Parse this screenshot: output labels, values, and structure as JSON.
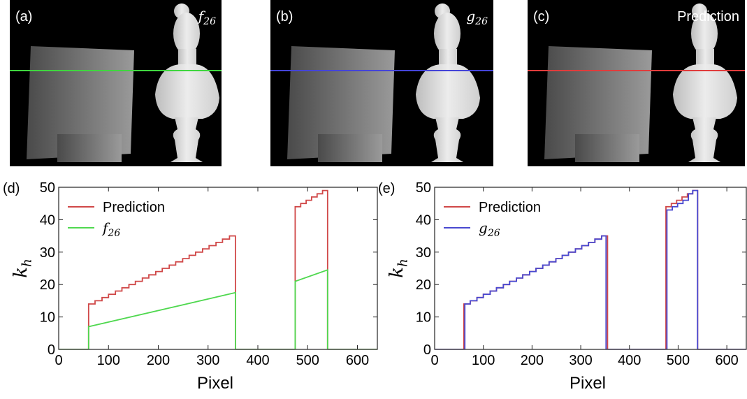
{
  "images": [
    {
      "label": "(a)",
      "caption": {
        "base": "f",
        "sub": "26"
      },
      "line_color": "#3fd63f"
    },
    {
      "label": "(b)",
      "caption": {
        "base": "g",
        "sub": "26"
      },
      "line_color": "#4444d8"
    },
    {
      "label": "(c)",
      "caption": "Prediction",
      "line_color": "#e03c3c"
    }
  ],
  "chart_data": [
    {
      "type": "line",
      "panel_label": "(d)",
      "xlabel": "Pixel",
      "ylabel": {
        "base": "k",
        "sub": "h"
      },
      "xlim": [
        0,
        640
      ],
      "xticks": [
        0,
        100,
        200,
        300,
        400,
        500,
        600
      ],
      "ylim": [
        0,
        50
      ],
      "yticks": [
        0,
        10,
        20,
        30,
        40,
        50
      ],
      "legend": "upper left",
      "series": [
        {
          "name": "Prediction",
          "color": "#d04848",
          "x": [
            0,
            60,
            60,
            73,
            73,
            87,
            87,
            100,
            100,
            114,
            114,
            127,
            127,
            141,
            141,
            154,
            154,
            168,
            168,
            181,
            181,
            195,
            195,
            208,
            208,
            222,
            222,
            235,
            235,
            249,
            249,
            262,
            262,
            275,
            275,
            289,
            289,
            302,
            302,
            316,
            316,
            329,
            329,
            343,
            343,
            355,
            355,
            475,
            475,
            486,
            486,
            497,
            497,
            508,
            508,
            519,
            519,
            530,
            530,
            540,
            540,
            640
          ],
          "values": [
            0,
            0,
            14,
            14,
            15,
            15,
            16,
            16,
            17,
            17,
            18,
            18,
            19,
            19,
            20,
            20,
            21,
            21,
            22,
            22,
            23,
            23,
            24,
            24,
            25,
            25,
            26,
            26,
            27,
            27,
            28,
            28,
            29,
            29,
            30,
            30,
            31,
            31,
            32,
            32,
            33,
            33,
            34,
            34,
            35,
            35,
            0,
            0,
            44,
            44,
            45,
            45,
            46,
            46,
            47,
            47,
            48,
            48,
            49,
            49,
            0,
            0
          ]
        },
        {
          "name": {
            "base": "f",
            "sub": "26"
          },
          "color": "#4fd84f",
          "x": [
            0,
            60,
            60,
            355,
            355,
            475,
            475,
            540,
            540,
            640
          ],
          "values": [
            0,
            0,
            7,
            17.5,
            0,
            0,
            21,
            24.5,
            0,
            0
          ]
        }
      ]
    },
    {
      "type": "line",
      "panel_label": "(e)",
      "xlabel": "Pixel",
      "ylabel": {
        "base": "k",
        "sub": "h"
      },
      "xlim": [
        0,
        640
      ],
      "xticks": [
        0,
        100,
        200,
        300,
        400,
        500,
        600
      ],
      "ylim": [
        0,
        50
      ],
      "yticks": [
        0,
        10,
        20,
        30,
        40,
        50
      ],
      "legend": "upper left",
      "series": [
        {
          "name": "Prediction",
          "color": "#d04848",
          "x": [
            0,
            60,
            60,
            73,
            73,
            87,
            87,
            100,
            100,
            114,
            114,
            127,
            127,
            141,
            141,
            154,
            154,
            168,
            168,
            181,
            181,
            195,
            195,
            208,
            208,
            222,
            222,
            235,
            235,
            249,
            249,
            262,
            262,
            275,
            275,
            289,
            289,
            302,
            302,
            316,
            316,
            329,
            329,
            343,
            343,
            355,
            355,
            475,
            475,
            486,
            486,
            497,
            497,
            508,
            508,
            519,
            519,
            530,
            530,
            540,
            540,
            640
          ],
          "values": [
            0,
            0,
            14,
            14,
            15,
            15,
            16,
            16,
            17,
            17,
            18,
            18,
            19,
            19,
            20,
            20,
            21,
            21,
            22,
            22,
            23,
            23,
            24,
            24,
            25,
            25,
            26,
            26,
            27,
            27,
            28,
            28,
            29,
            29,
            30,
            30,
            31,
            31,
            32,
            32,
            33,
            33,
            34,
            34,
            35,
            35,
            0,
            0,
            44,
            44,
            45,
            45,
            46,
            46,
            47,
            47,
            48,
            48,
            49,
            49,
            0,
            0
          ]
        },
        {
          "name": {
            "base": "g",
            "sub": "26"
          },
          "color": "#4848d0",
          "x": [
            0,
            62,
            62,
            73,
            73,
            87,
            87,
            100,
            100,
            114,
            114,
            127,
            127,
            141,
            141,
            154,
            154,
            168,
            168,
            181,
            181,
            195,
            195,
            208,
            208,
            222,
            222,
            235,
            235,
            249,
            249,
            262,
            262,
            275,
            275,
            289,
            289,
            302,
            302,
            316,
            316,
            329,
            329,
            343,
            343,
            352,
            352,
            477,
            477,
            488,
            488,
            499,
            499,
            510,
            510,
            521,
            521,
            530,
            530,
            540,
            540,
            640
          ],
          "values": [
            0,
            0,
            14,
            14,
            15,
            15,
            16,
            16,
            17,
            17,
            18,
            18,
            19,
            19,
            20,
            20,
            21,
            21,
            22,
            22,
            23,
            23,
            24,
            24,
            25,
            25,
            26,
            26,
            27,
            27,
            28,
            28,
            29,
            29,
            30,
            30,
            31,
            31,
            32,
            32,
            33,
            33,
            34,
            34,
            35,
            35,
            0,
            0,
            43,
            43,
            44,
            44,
            45,
            45,
            46,
            46,
            48,
            48,
            49,
            49,
            0,
            0
          ]
        }
      ]
    }
  ]
}
